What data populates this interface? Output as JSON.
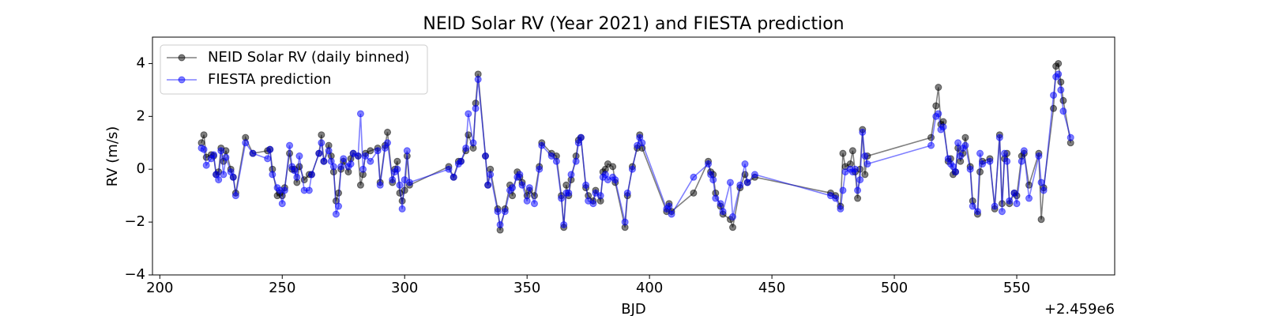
{
  "chart_data": {
    "type": "line",
    "title": "NEID Solar RV (Year 2021) and FIESTA prediction",
    "x_label": "BJD",
    "x_offset_label": "+2.459e6",
    "y_label": "RV (m/s)",
    "legend": "upper left",
    "xlim": [
      197,
      590
    ],
    "ylim": [
      -4,
      5
    ],
    "xticks": [
      200,
      250,
      300,
      350,
      400,
      450,
      500,
      550
    ],
    "yticks": [
      {
        "value": -4,
        "label": "−4"
      },
      {
        "value": -2,
        "label": "−2"
      },
      0,
      2,
      4
    ],
    "x": [
      217,
      218,
      219,
      221,
      222,
      223,
      224,
      225,
      226,
      227,
      229,
      230,
      231,
      235,
      238,
      244,
      245,
      246,
      248,
      249,
      250,
      251,
      253,
      254,
      255,
      256,
      257,
      259,
      261,
      262,
      265,
      266,
      267,
      269,
      270,
      271,
      272,
      273,
      274,
      275,
      277,
      278,
      279,
      281,
      282,
      283,
      284,
      286,
      289,
      290,
      292,
      293,
      295,
      296,
      297,
      298,
      299,
      300,
      301,
      302,
      318,
      320,
      322,
      323,
      325,
      326,
      328,
      329,
      330,
      333,
      334,
      335,
      338,
      339,
      341,
      343,
      344,
      346,
      347,
      348,
      350,
      351,
      353,
      355,
      356,
      360,
      362,
      364,
      365,
      366,
      367,
      368,
      370,
      371,
      372,
      374,
      375,
      377,
      378,
      380,
      381,
      382,
      383,
      385,
      386,
      390,
      391,
      393,
      395,
      396,
      397,
      407,
      408,
      409,
      418,
      424,
      425,
      426,
      427,
      429,
      430,
      433,
      434,
      437,
      439,
      440,
      443,
      474,
      476,
      478,
      479,
      480,
      482,
      483,
      484,
      485,
      486,
      487,
      488,
      489,
      515,
      517,
      518,
      519,
      520,
      522,
      523,
      524,
      525,
      526,
      527,
      528,
      529,
      531,
      532,
      534,
      535,
      536,
      539,
      541,
      543,
      544,
      545,
      546,
      547,
      549,
      550,
      552,
      553,
      555,
      559,
      560,
      561,
      565,
      566,
      567,
      568,
      569,
      572
    ],
    "series": [
      {
        "name": "NEID Solar RV (daily binned)",
        "color": "#000000",
        "values": [
          1.0,
          1.3,
          0.45,
          0.55,
          0.5,
          -0.2,
          -0.1,
          0.8,
          0.3,
          0.7,
          0.0,
          -0.3,
          -0.9,
          1.2,
          0.6,
          0.7,
          0.75,
          0.0,
          -1.0,
          -0.9,
          -1.0,
          -0.7,
          0.6,
          0.0,
          0.0,
          -0.5,
          0.1,
          -0.4,
          -0.2,
          -0.2,
          0.6,
          1.3,
          0.3,
          0.9,
          0.5,
          -0.1,
          -1.2,
          -0.9,
          0.0,
          0.3,
          -0.1,
          0.4,
          0.6,
          0.5,
          -0.6,
          -0.2,
          0.6,
          0.7,
          0.8,
          -0.5,
          0.9,
          1.4,
          -0.5,
          0.0,
          0.3,
          -0.9,
          -1.2,
          -0.8,
          0.5,
          -0.6,
          0.1,
          -0.3,
          0.3,
          0.3,
          0.7,
          1.3,
          0.8,
          2.5,
          3.6,
          0.5,
          -0.6,
          0.0,
          -1.5,
          -2.3,
          -1.5,
          -0.6,
          -1.0,
          -0.1,
          -0.3,
          -0.5,
          -1.0,
          -0.8,
          -1.0,
          0.1,
          1.0,
          0.6,
          0.5,
          -1.0,
          -2.2,
          -0.6,
          -1.0,
          -0.4,
          0.5,
          1.1,
          1.2,
          -0.7,
          -1.0,
          -1.2,
          -0.8,
          -1.2,
          -0.1,
          0.0,
          0.2,
          0.1,
          -0.5,
          -2.2,
          -1.0,
          0.1,
          0.8,
          1.3,
          0.8,
          -1.6,
          -1.3,
          -1.6,
          -0.9,
          0.3,
          -0.1,
          -0.2,
          -0.9,
          -1.4,
          -1.7,
          -1.9,
          -2.2,
          -0.7,
          -0.2,
          -0.5,
          -0.3,
          -0.9,
          -1.0,
          -1.4,
          0.6,
          0.1,
          0.2,
          0.7,
          -0.1,
          -1.1,
          0.0,
          1.5,
          -0.2,
          0.5,
          1.2,
          2.4,
          3.1,
          1.7,
          1.8,
          0.3,
          0.4,
          -0.2,
          -0.1,
          0.8,
          0.3,
          0.6,
          1.2,
          0.1,
          -1.2,
          -1.7,
          -0.1,
          0.3,
          0.4,
          -1.5,
          1.3,
          -1.3,
          0.4,
          0.6,
          -1.3,
          -0.9,
          -1.0,
          0.5,
          0.6,
          -0.6,
          0.6,
          -1.9,
          -0.7,
          2.3,
          3.9,
          4.0,
          3.3,
          2.6,
          1.0
        ]
      },
      {
        "name": "FIESTA prediction",
        "color": "#0000ff",
        "values": [
          0.8,
          0.75,
          0.15,
          0.4,
          0.55,
          -0.2,
          -0.4,
          0.7,
          -0.2,
          0.45,
          -0.1,
          -0.3,
          -1.0,
          1.0,
          0.6,
          0.4,
          0.75,
          -0.2,
          -0.7,
          -0.8,
          -1.3,
          -0.8,
          0.9,
          0.1,
          -0.05,
          -0.3,
          0.5,
          -0.8,
          -0.8,
          -0.2,
          0.6,
          1.0,
          0.3,
          0.7,
          0.3,
          0.1,
          -1.7,
          -1.4,
          0.1,
          0.4,
          0.1,
          0.2,
          0.6,
          0.5,
          2.1,
          0.0,
          0.5,
          0.3,
          0.7,
          -0.6,
          0.8,
          1.0,
          -0.4,
          -0.1,
          0.0,
          -0.6,
          -1.5,
          -0.4,
          0.7,
          -0.5,
          0.0,
          -0.3,
          0.2,
          0.3,
          0.8,
          2.1,
          1.0,
          2.3,
          3.4,
          0.5,
          -0.6,
          -0.2,
          -1.6,
          -2.1,
          -1.6,
          -0.8,
          -0.7,
          -0.3,
          -0.2,
          -0.6,
          -1.2,
          -0.7,
          -1.3,
          0.0,
          0.9,
          0.5,
          0.3,
          -1.1,
          -2.1,
          -0.9,
          -0.9,
          -0.2,
          0.3,
          1.0,
          1.2,
          -0.6,
          -1.2,
          -1.3,
          -0.9,
          -1.0,
          -0.3,
          -0.2,
          -0.4,
          -0.3,
          -0.4,
          -2.0,
          -0.9,
          0.0,
          0.9,
          1.2,
          1.0,
          -1.5,
          -1.4,
          -1.7,
          -0.3,
          0.2,
          -0.2,
          -0.4,
          -1.1,
          -1.3,
          -1.6,
          -0.5,
          -1.8,
          -0.6,
          0.2,
          -0.5,
          -0.2,
          -1.0,
          -1.1,
          -1.5,
          -0.8,
          -0.1,
          0.0,
          -0.1,
          0.0,
          -0.8,
          -0.4,
          1.4,
          0.5,
          0.2,
          0.9,
          2.0,
          2.1,
          1.5,
          1.6,
          0.4,
          0.2,
          0.1,
          -0.1,
          1.0,
          0.5,
          0.8,
          0.9,
          0.0,
          -1.4,
          -1.6,
          0.6,
          0.2,
          0.3,
          -1.4,
          1.2,
          -1.6,
          0.6,
          0.3,
          -1.2,
          -0.9,
          -1.3,
          0.3,
          0.7,
          -1.1,
          0.5,
          -0.5,
          -0.8,
          2.8,
          3.5,
          3.6,
          3.0,
          2.2,
          1.2
        ]
      }
    ]
  }
}
